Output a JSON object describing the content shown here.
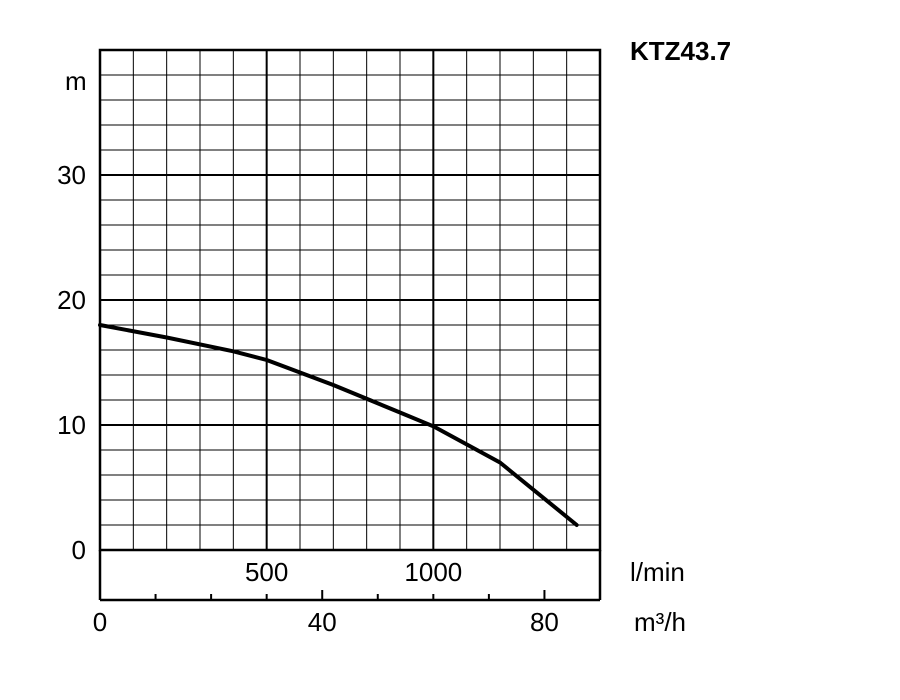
{
  "chart_data": {
    "type": "line",
    "title": "KTZ43.7",
    "ylabel": "m",
    "xlabel_primary": "l/min",
    "xlabel_secondary": "m³/h",
    "ylim": [
      0,
      40
    ],
    "xlim": [
      0,
      1500
    ],
    "y_ticks": [
      "0",
      "10",
      "20",
      "30"
    ],
    "y_tick_values": [
      0,
      10,
      20,
      30
    ],
    "x_ticks_primary": [
      "500",
      "1000"
    ],
    "x_tick_values_primary": [
      500,
      1000
    ],
    "x_ticks_secondary": [
      "0",
      "40",
      "80"
    ],
    "x_tick_values_secondary": [
      0,
      40,
      80
    ],
    "grid": true,
    "series": [
      {
        "x": [
          0,
          200,
          400,
          500,
          700,
          900,
          1000,
          1200,
          1430
        ],
        "y": [
          18,
          17,
          15.9,
          15.2,
          13.2,
          11,
          9.9,
          7,
          2
        ]
      }
    ]
  }
}
